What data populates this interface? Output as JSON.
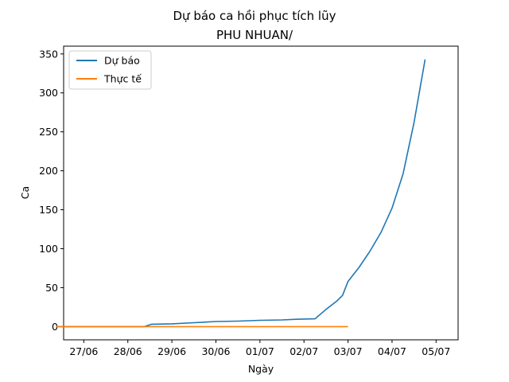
{
  "chart_data": {
    "type": "line",
    "title": "Dự báo ca hồi phục tích lũy",
    "subtitle": "PHU NHUAN/",
    "xlabel": "Ngày",
    "ylabel": "Ca",
    "x_ticks": [
      "27/06",
      "28/06",
      "29/06",
      "30/06",
      "01/07",
      "02/07",
      "03/07",
      "04/07",
      "05/07"
    ],
    "y_ticks": [
      0,
      50,
      100,
      150,
      200,
      250,
      300,
      350
    ],
    "xlim": [
      "26/06 13:00",
      "05/07 12:00"
    ],
    "ylim": [
      -17,
      360
    ],
    "legend_position": "top-left",
    "grid": false,
    "series": [
      {
        "name": "Dự báo",
        "color": "#1f77b4",
        "points": [
          [
            "26/06 09:00",
            0
          ],
          [
            "28/06 09:00",
            0
          ],
          [
            "28/06 13:00",
            3
          ],
          [
            "29/06 00:00",
            3.5
          ],
          [
            "29/06 12:00",
            5
          ],
          [
            "30/06 00:00",
            6.5
          ],
          [
            "30/06 12:00",
            7
          ],
          [
            "01/07 00:00",
            8
          ],
          [
            "01/07 12:00",
            8.5
          ],
          [
            "01/07 21:00",
            9.5
          ],
          [
            "02/07 06:00",
            10
          ],
          [
            "02/07 12:00",
            22
          ],
          [
            "02/07 18:00",
            33
          ],
          [
            "02/07 21:00",
            40
          ],
          [
            "03/07 00:00",
            58
          ],
          [
            "03/07 06:00",
            76
          ],
          [
            "03/07 12:00",
            97
          ],
          [
            "03/07 18:00",
            121
          ],
          [
            "04/07 00:00",
            152
          ],
          [
            "04/07 06:00",
            196
          ],
          [
            "04/07 12:00",
            262
          ],
          [
            "04/07 18:00",
            343
          ]
        ]
      },
      {
        "name": "Thực tế",
        "color": "#ff7f0e",
        "points": [
          [
            "26/06 09:00",
            0
          ],
          [
            "03/07 00:00",
            0
          ]
        ]
      }
    ]
  }
}
